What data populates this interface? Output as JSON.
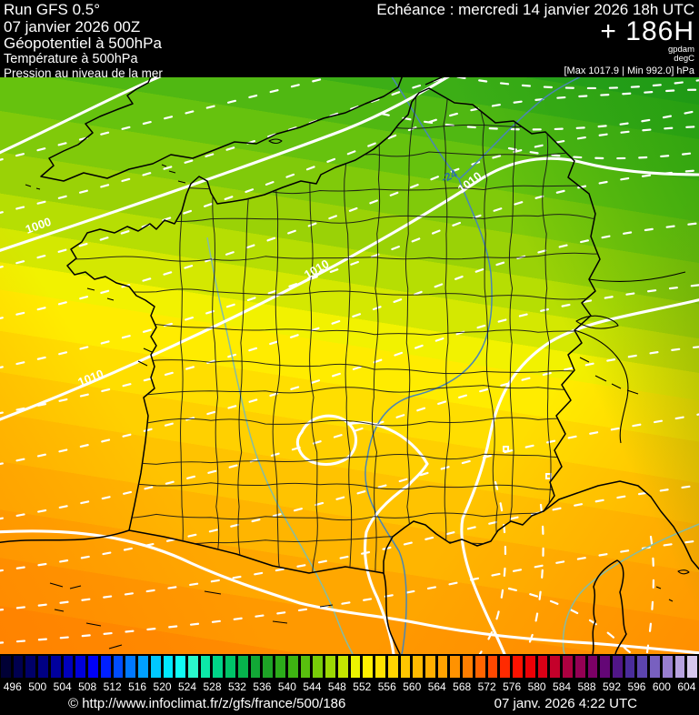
{
  "header": {
    "run_line1": "Run GFS 0.5°",
    "run_line2": "07 janvier 2026 00Z",
    "param_line1": "Géopotentiel à 500hPa",
    "param_line2": "Température à 500hPa",
    "param_line3": "Pression au niveau de la mer",
    "echeance": "Echéance : mercredi 14 janvier 2026 18h UTC",
    "forecast_hour": "+ 186H",
    "unit1": "gpdam",
    "unit2": "degC",
    "minmax": "[Max 1017.9 | Min 992.0] hPa"
  },
  "map": {
    "label_1000": "1000",
    "label_1010": "1010",
    "label_temp": "-24",
    "isobar_color": "#ffffff",
    "temp_contour_color": "#4a86b4",
    "coast_color": "#000000"
  },
  "colorbar": {
    "unit": "gpdam",
    "tick_labels": [
      "496",
      "500",
      "504",
      "508",
      "512",
      "516",
      "520",
      "524",
      "528",
      "532",
      "536",
      "540",
      "544",
      "548",
      "552",
      "556",
      "560",
      "564",
      "568",
      "572",
      "576",
      "580",
      "584",
      "588",
      "592",
      "596",
      "600",
      "604"
    ],
    "cell_colors": [
      "#000035",
      "#00004f",
      "#000069",
      "#000083",
      "#00009d",
      "#0000bb",
      "#0000d9",
      "#0000f7",
      "#0020ff",
      "#004cff",
      "#0078ff",
      "#00a0ff",
      "#00c8ff",
      "#00e8ff",
      "#10fcf4",
      "#2af8cc",
      "#0ce8a8",
      "#00d488",
      "#00c468",
      "#06b44c",
      "#12a836",
      "#1ea426",
      "#2cac1a",
      "#3eb412",
      "#58c00e",
      "#78cc08",
      "#9cd804",
      "#c4e600",
      "#ecf400",
      "#fff000",
      "#ffe200",
      "#ffd400",
      "#ffc600",
      "#ffba00",
      "#ffae00",
      "#ffa200",
      "#ff9200",
      "#ff7e00",
      "#ff6400",
      "#ff4800",
      "#ff2a00",
      "#fc1200",
      "#ec0006",
      "#da0016",
      "#c4002a",
      "#ac0040",
      "#940054",
      "#7c0066",
      "#640676",
      "#501688",
      "#4a2c9c",
      "#5c44ae",
      "#7860c0",
      "#987ed0",
      "#b8a2e0",
      "#d6c6ec"
    ]
  },
  "footer": {
    "copyright": "© http://www.infoclimat.fr/z/gfs/france/500/186",
    "datetime": "07 janv. 2026  4:22 UTC"
  }
}
